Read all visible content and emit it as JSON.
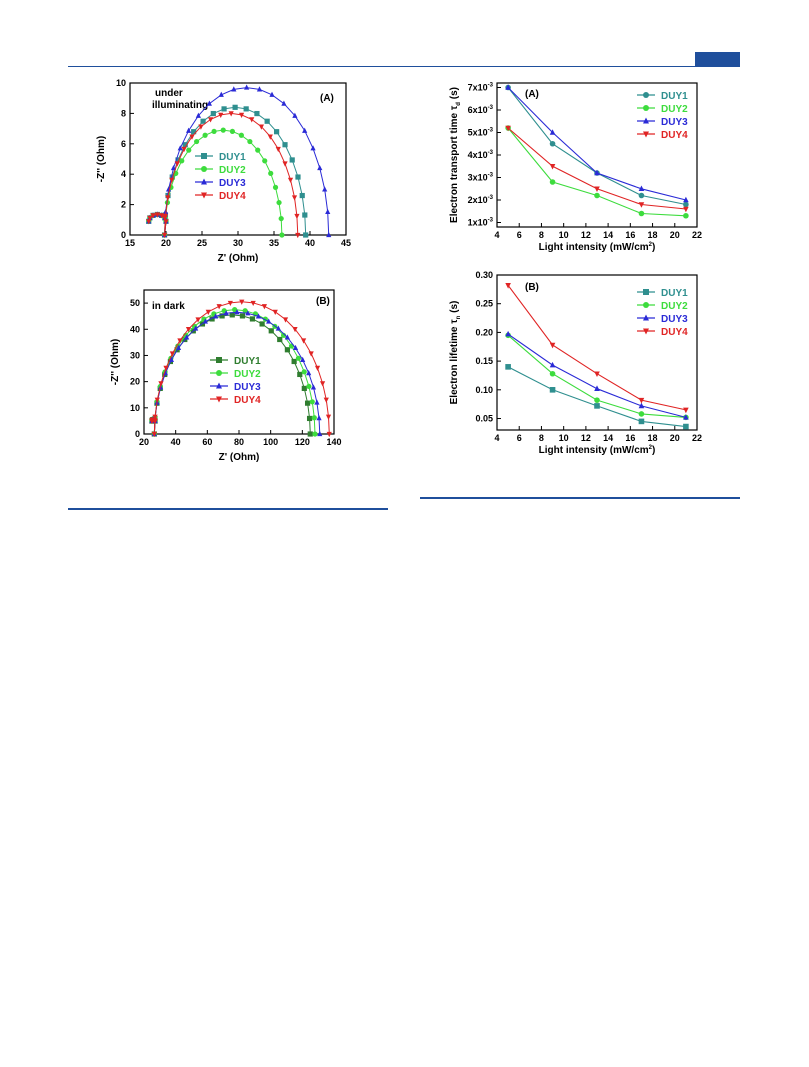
{
  "chart_data": [
    {
      "id": "nyq1",
      "type": "scatter",
      "panel_label": "(A)",
      "annotation": "under\nilluminating",
      "xlabel": "Z' (Ohm)",
      "ylabel": "-Z'' (Ohm)",
      "xlim": [
        15,
        45
      ],
      "ylim": [
        0,
        10
      ],
      "xticks": [
        15,
        20,
        25,
        30,
        35,
        40,
        45
      ],
      "yticks": [
        0,
        2,
        4,
        6,
        8,
        10
      ],
      "legend_position": "center-left",
      "colors": [
        "#2f8f8f",
        "#3ddc3d",
        "#2a2ad6",
        "#e02424"
      ],
      "markers": [
        "square",
        "circle",
        "triangle-up",
        "triangle-down"
      ],
      "small_arc": {
        "x0": 17.6,
        "x1": 20.0,
        "h": 0.45
      },
      "series": [
        {
          "name": "DUY1",
          "x0": 19.8,
          "x1": 39.4,
          "peak_y": 8.4
        },
        {
          "name": "DUY2",
          "x0": 19.8,
          "x1": 36.1,
          "peak_y": 6.9
        },
        {
          "name": "DUY3",
          "x0": 19.8,
          "x1": 42.6,
          "peak_y": 9.7
        },
        {
          "name": "DUY4",
          "x0": 19.8,
          "x1": 38.3,
          "peak_y": 8.0
        }
      ]
    },
    {
      "id": "nyq2",
      "type": "scatter",
      "panel_label": "(B)",
      "annotation": "in dark",
      "xlabel": "Z' (Ohm)",
      "ylabel": "-Z'' (Ohm)",
      "xlim": [
        20,
        140
      ],
      "ylim": [
        0,
        55
      ],
      "xticks": [
        20,
        40,
        60,
        80,
        100,
        120,
        140
      ],
      "yticks": [
        0,
        10,
        20,
        30,
        40,
        50
      ],
      "legend_position": "center-right",
      "colors": [
        "#2f7d2f",
        "#3ddc3d",
        "#2a2ad6",
        "#e02424"
      ],
      "markers": [
        "square",
        "circle",
        "triangle-up",
        "triangle-down"
      ],
      "small_arc": {
        "x0": 25.0,
        "x1": 27.0,
        "h": 0.6
      },
      "series": [
        {
          "name": "DUY1",
          "x0": 26.5,
          "x1": 125.0,
          "peak_y": 45.5
        },
        {
          "name": "DUY2",
          "x0": 26.5,
          "x1": 128.0,
          "peak_y": 47.5
        },
        {
          "name": "DUY3",
          "x0": 26.5,
          "x1": 131.0,
          "peak_y": 46.5
        },
        {
          "name": "DUY4",
          "x0": 26.5,
          "x1": 137.0,
          "peak_y": 50.5
        }
      ]
    },
    {
      "id": "tau_d",
      "type": "line",
      "panel_label": "(A)",
      "xlabel": "Light intensity (mW/cm",
      "xlabel_sup": "2",
      "xlabel_end": ")",
      "ylabel": "Electron transport time τ",
      "ylabel_sub": "d",
      "ylabel_end": " (s)",
      "xlim": [
        4,
        22
      ],
      "ylim": [
        0.0008,
        0.0072
      ],
      "xticks": [
        4,
        6,
        8,
        10,
        12,
        14,
        16,
        18,
        20,
        22
      ],
      "ytick_labels": [
        {
          "value": 0.001,
          "mant": "1x10",
          "exp": "-3"
        },
        {
          "value": 0.002,
          "mant": "2x10",
          "exp": "-3"
        },
        {
          "value": 0.003,
          "mant": "3x10",
          "exp": "-3"
        },
        {
          "value": 0.004,
          "mant": "4x10",
          "exp": "-3"
        },
        {
          "value": 0.005,
          "mant": "5x10",
          "exp": "-3"
        },
        {
          "value": 0.006,
          "mant": "6x10",
          "exp": "-3"
        },
        {
          "value": 0.007,
          "mant": "7x10",
          "exp": "-3"
        }
      ],
      "legend_position": "top-right",
      "colors": [
        "#2f8f8f",
        "#3ddc3d",
        "#2a2ad6",
        "#e02424"
      ],
      "markers": [
        "circle",
        "circle",
        "triangle-up",
        "triangle-down"
      ],
      "x": [
        5,
        9,
        13,
        17,
        21
      ],
      "series": [
        {
          "name": "DUY1",
          "values": [
            0.007,
            0.0045,
            0.0032,
            0.0022,
            0.0018
          ]
        },
        {
          "name": "DUY2",
          "values": [
            0.0052,
            0.0028,
            0.0022,
            0.0014,
            0.0013
          ]
        },
        {
          "name": "DUY3",
          "values": [
            0.007,
            0.005,
            0.0032,
            0.0025,
            0.002
          ]
        },
        {
          "name": "DUY4",
          "values": [
            0.0052,
            0.0035,
            0.0025,
            0.0018,
            0.0016
          ]
        }
      ]
    },
    {
      "id": "tau_n",
      "type": "line",
      "panel_label": "(B)",
      "xlabel": "Light intensity (mW/cm",
      "xlabel_sup": "2",
      "xlabel_end": ")",
      "ylabel": "Electron lifetime τ",
      "ylabel_sub": "n",
      "ylabel_end": " (s)",
      "xlim": [
        4,
        22
      ],
      "ylim": [
        0.03,
        0.3
      ],
      "xticks": [
        4,
        6,
        8,
        10,
        12,
        14,
        16,
        18,
        20,
        22
      ],
      "ytick_labels": [
        {
          "value": 0.05,
          "mant": "0.05",
          "exp": ""
        },
        {
          "value": 0.1,
          "mant": "0.10",
          "exp": ""
        },
        {
          "value": 0.15,
          "mant": "0.15",
          "exp": ""
        },
        {
          "value": 0.2,
          "mant": "0.20",
          "exp": ""
        },
        {
          "value": 0.25,
          "mant": "0.25",
          "exp": ""
        },
        {
          "value": 0.3,
          "mant": "0.30",
          "exp": ""
        }
      ],
      "legend_position": "top-right",
      "colors": [
        "#2f8f8f",
        "#3ddc3d",
        "#2a2ad6",
        "#e02424"
      ],
      "markers": [
        "square",
        "circle",
        "triangle-up",
        "triangle-down"
      ],
      "x": [
        5,
        9,
        13,
        17,
        21
      ],
      "series": [
        {
          "name": "DUY1",
          "values": [
            0.14,
            0.1,
            0.072,
            0.045,
            0.036
          ]
        },
        {
          "name": "DUY2",
          "values": [
            0.195,
            0.128,
            0.082,
            0.058,
            0.052
          ]
        },
        {
          "name": "DUY3",
          "values": [
            0.197,
            0.143,
            0.102,
            0.072,
            0.052
          ]
        },
        {
          "name": "DUY4",
          "values": [
            0.282,
            0.178,
            0.128,
            0.082,
            0.065
          ]
        }
      ]
    }
  ]
}
